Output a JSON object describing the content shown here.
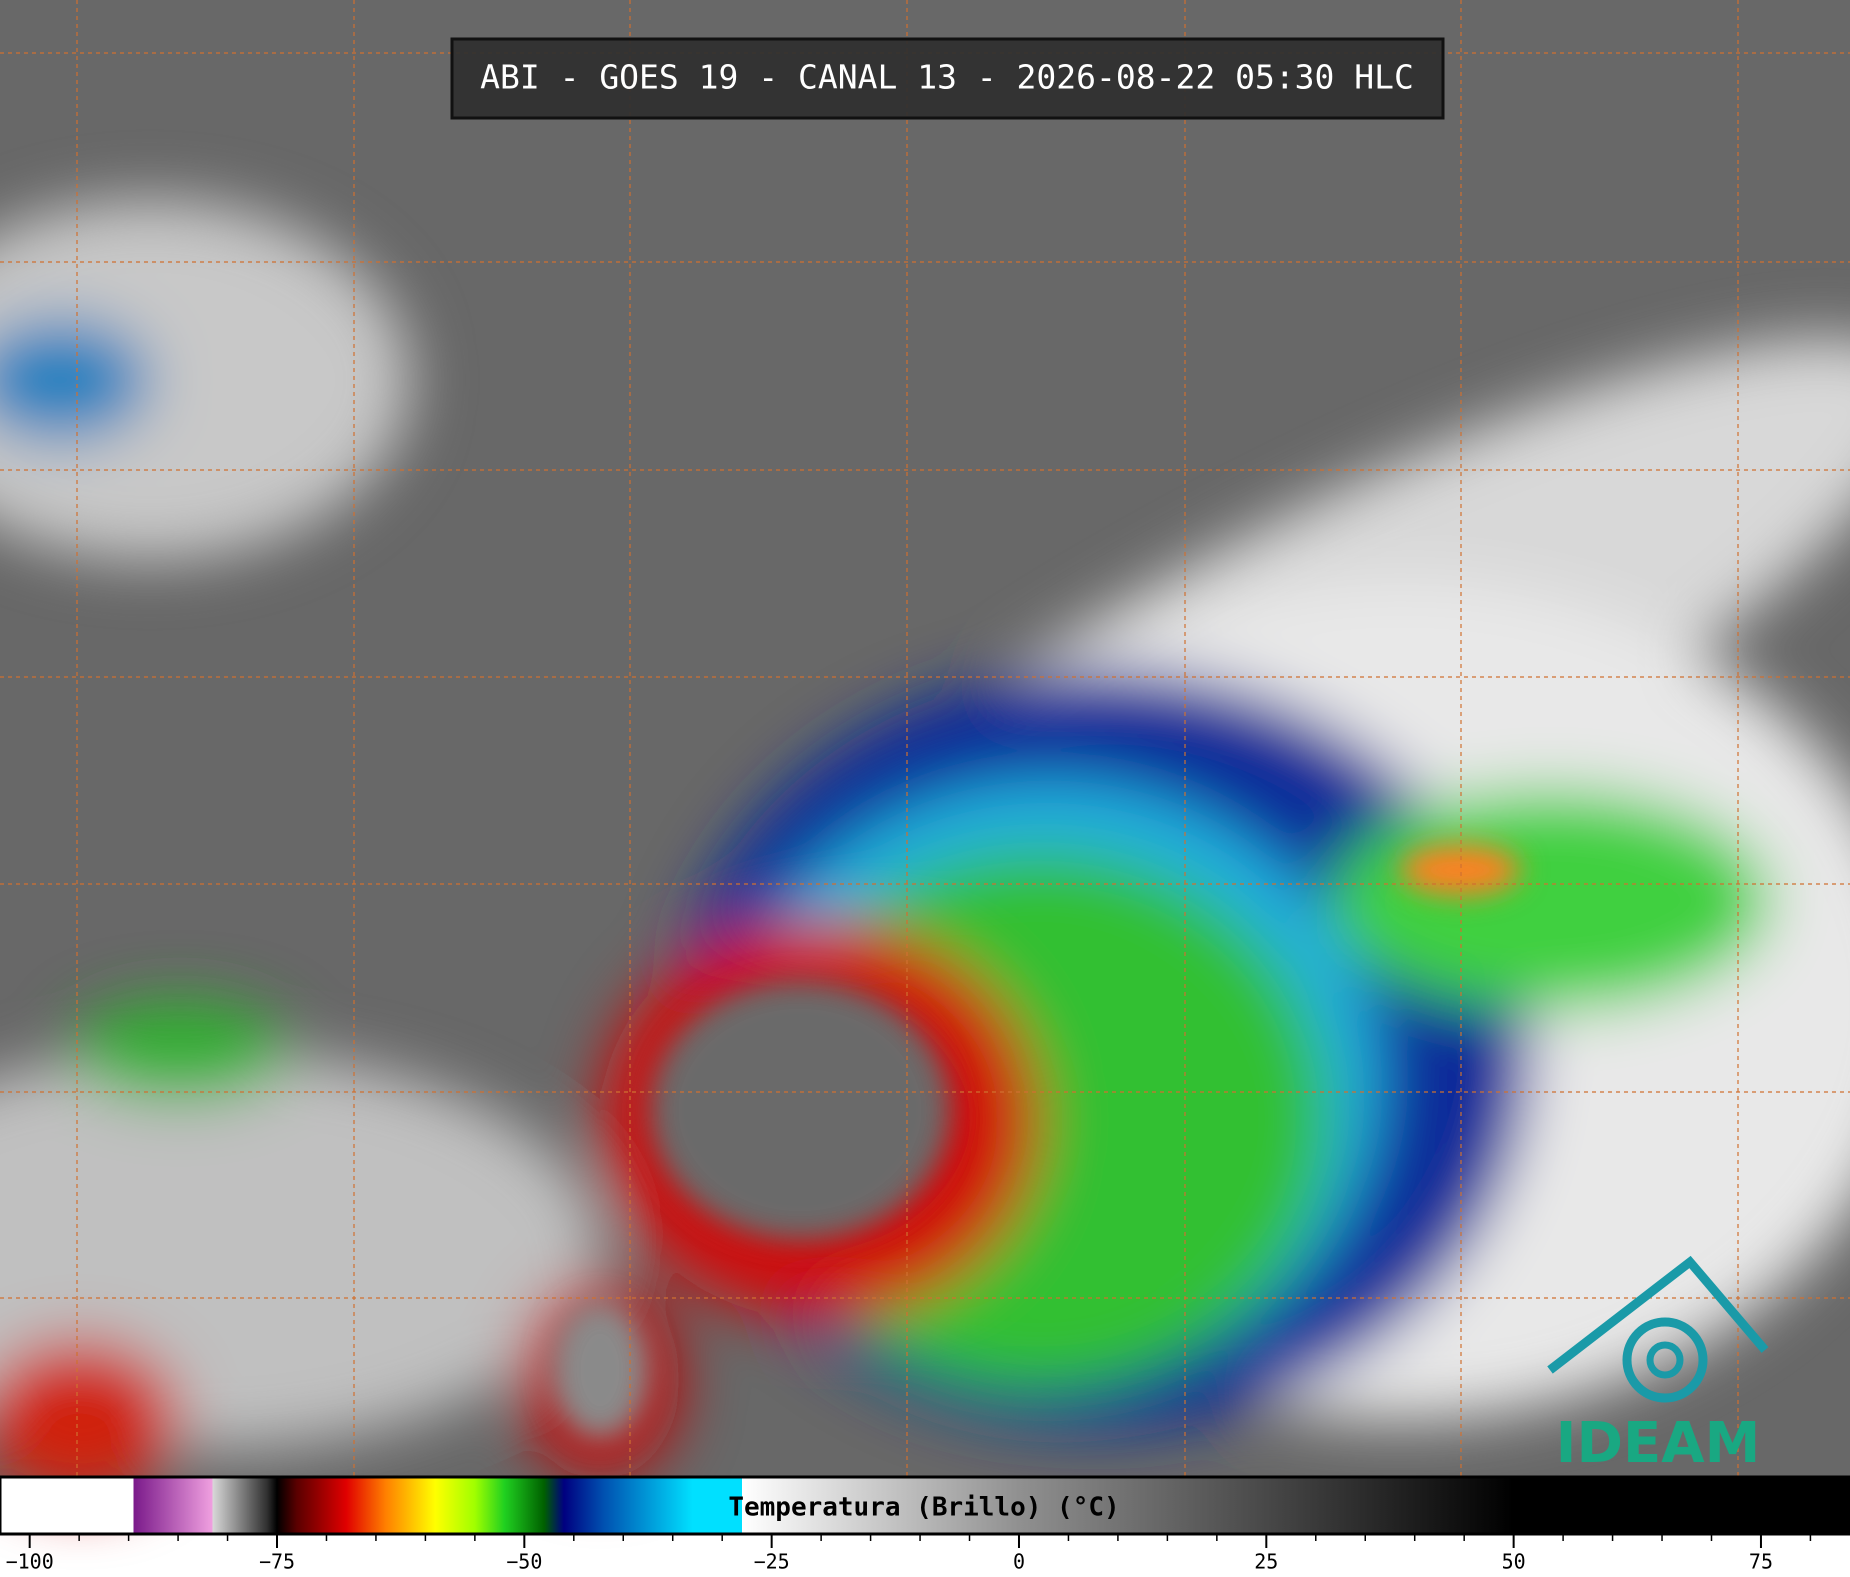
{
  "title": "ABI - GOES 19 - CANAL 13 - 2026-08-22 05:30 HLC",
  "logo": "IDEAM",
  "colorbar": {
    "label": "Temperatura (Brillo) (°C)",
    "xlim": [
      -103,
      84
    ],
    "ticks": [
      {
        "value": -100,
        "label": "−100"
      },
      {
        "value": -75,
        "label": "−75"
      },
      {
        "value": -50,
        "label": "−50"
      },
      {
        "value": -25,
        "label": "−25"
      },
      0,
      25,
      50,
      75
    ],
    "minor_ticks": [
      -95,
      -90,
      -85,
      -80,
      -70,
      -65,
      -60,
      -55,
      -45,
      -40,
      -35,
      -30,
      -20,
      -15,
      -10,
      -5,
      5,
      10,
      15,
      20,
      30,
      35,
      40,
      45,
      55,
      60,
      65,
      70,
      80
    ],
    "stops": [
      {
        "value": -103,
        "color": "#ffffff"
      },
      {
        "value": -89.5,
        "color": "#ffffff"
      },
      {
        "value": -89.5,
        "color": "#7a1a8a"
      },
      {
        "value": -81.5,
        "color": "#f0a0e0"
      },
      {
        "value": -81.5,
        "color": "#d8d8d8"
      },
      {
        "value": -76,
        "color": "#303030"
      },
      {
        "value": -75,
        "color": "#000000"
      },
      {
        "value": -73,
        "color": "#5a0000"
      },
      {
        "value": -68,
        "color": "#e00000"
      },
      {
        "value": -64,
        "color": "#ff8000"
      },
      {
        "value": -59,
        "color": "#ffff00"
      },
      {
        "value": -55,
        "color": "#a0ff00"
      },
      {
        "value": -52,
        "color": "#20d020"
      },
      {
        "value": -48,
        "color": "#006000"
      },
      {
        "value": -46,
        "color": "#000080"
      },
      {
        "value": -42,
        "color": "#0050b0"
      },
      {
        "value": -33,
        "color": "#00e0ff"
      },
      {
        "value": -28,
        "color": "#00e0ff"
      },
      {
        "value": -28,
        "color": "#ffffff"
      },
      {
        "value": 0,
        "color": "#909090"
      },
      {
        "value": 50,
        "color": "#000000"
      },
      {
        "value": 84,
        "color": "#000000"
      }
    ]
  }
}
